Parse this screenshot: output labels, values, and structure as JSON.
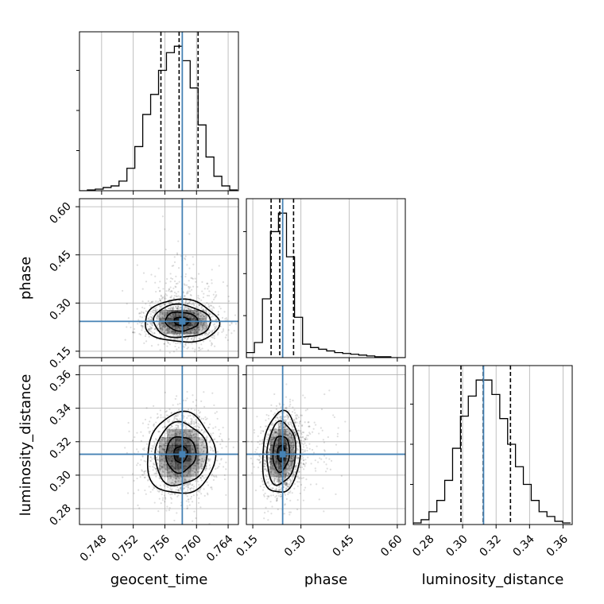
{
  "chart_data": {
    "type": "corner",
    "parameters": [
      "geocent_time",
      "phase",
      "luminosity_distance"
    ],
    "truths": {
      "geocent_time": 0.7582,
      "phase": 0.243,
      "luminosity_distance": 0.3125
    },
    "quantiles": {
      "geocent_time": [
        0.7555,
        0.7578,
        0.7602
      ],
      "phase": [
        0.207,
        0.234,
        0.277
      ],
      "luminosity_distance": [
        0.299,
        0.3123,
        0.3286
      ]
    },
    "ranges": {
      "geocent_time": [
        0.7452,
        0.7653
      ],
      "phase": [
        0.13,
        0.625
      ],
      "luminosity_distance": [
        0.2705,
        0.3655
      ]
    },
    "ticks": {
      "geocent_time": [
        0.748,
        0.752,
        0.756,
        0.76,
        0.764
      ],
      "phase": [
        0.15,
        0.3,
        0.45,
        0.6
      ],
      "luminosity_distance": [
        0.28,
        0.3,
        0.32,
        0.34,
        0.36
      ]
    },
    "tick_labels": {
      "geocent_time": [
        "0.748",
        "0.752",
        "0.756",
        "0.760",
        "0.764"
      ],
      "phase": [
        "0.15",
        "0.30",
        "0.45",
        "0.60"
      ],
      "luminosity_distance": [
        "0.28",
        "0.30",
        "0.32",
        "0.34",
        "0.36"
      ]
    },
    "histograms": {
      "geocent_time": {
        "bin_edges": [
          0.7452,
          0.7462,
          0.7472,
          0.7482,
          0.7492,
          0.7502,
          0.7512,
          0.7522,
          0.7532,
          0.7542,
          0.7552,
          0.7562,
          0.7572,
          0.7582,
          0.7592,
          0.7602,
          0.7612,
          0.7622,
          0.7632,
          0.7642,
          0.7652
        ],
        "counts": [
          0,
          1,
          2,
          4,
          6,
          12,
          28,
          55,
          95,
          120,
          150,
          172,
          180,
          162,
          128,
          82,
          42,
          18,
          6,
          1
        ]
      },
      "phase": {
        "bin_edges": [
          0.13,
          0.155,
          0.18,
          0.205,
          0.23,
          0.255,
          0.28,
          0.305,
          0.33,
          0.355,
          0.38,
          0.405,
          0.43,
          0.455,
          0.48,
          0.505,
          0.53,
          0.555,
          0.58,
          0.605,
          0.63
        ],
        "counts": [
          6,
          18,
          70,
          150,
          172,
          120,
          48,
          16,
          12,
          10,
          8,
          6,
          5,
          4,
          3,
          2,
          1,
          1,
          0,
          0
        ]
      },
      "luminosity_distance": {
        "bin_edges": [
          0.2705,
          0.2752,
          0.2799,
          0.2846,
          0.2893,
          0.294,
          0.2987,
          0.3034,
          0.3081,
          0.3128,
          0.3175,
          0.3222,
          0.3269,
          0.3316,
          0.3363,
          0.341,
          0.3457,
          0.3504,
          0.3551,
          0.3598,
          0.3645
        ],
        "counts": [
          2,
          6,
          16,
          30,
          55,
          95,
          135,
          160,
          180,
          180,
          162,
          132,
          100,
          72,
          50,
          30,
          16,
          10,
          4,
          2
        ]
      }
    },
    "density_2d": [
      {
        "x": "geocent_time",
        "y": "phase",
        "mean": [
          0.7581,
          0.243
        ],
        "sd": [
          0.0024,
          0.034
        ],
        "rho": -0.05
      },
      {
        "x": "geocent_time",
        "y": "luminosity_distance",
        "mean": [
          0.758,
          0.3125
        ],
        "sd": [
          0.0022,
          0.0125
        ],
        "rho": 0.05
      },
      {
        "x": "phase",
        "y": "luminosity_distance",
        "mean": [
          0.238,
          0.313
        ],
        "sd": [
          0.03,
          0.0125
        ],
        "rho": 0.1
      }
    ],
    "contour_levels": [
      0.39,
      0.86,
      1.5,
      1.95
    ],
    "truth_color": "#4682b4",
    "line_color": "#000000"
  }
}
